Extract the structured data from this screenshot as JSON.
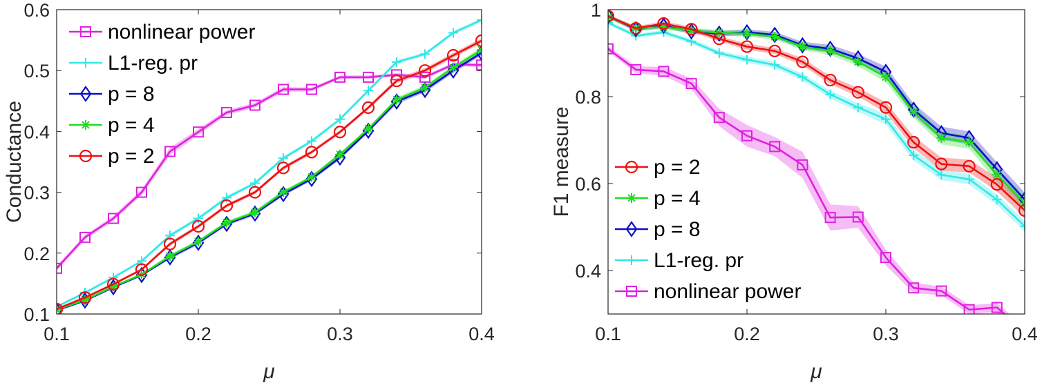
{
  "chart_data": [
    {
      "type": "line",
      "xlabel": "μ",
      "ylabel": "Conductance",
      "xlim": [
        0.1,
        0.4
      ],
      "ylim": [
        0.1,
        0.6
      ],
      "xticks": [
        "0.1",
        "0.2",
        "0.3",
        "0.4"
      ],
      "yticks": [
        "0.1",
        "0.2",
        "0.3",
        "0.4",
        "0.5",
        "0.6"
      ],
      "grid": false,
      "legend_placement": "top-left",
      "x": [
        0.1,
        0.12,
        0.14,
        0.16,
        0.18,
        0.2,
        0.22,
        0.24,
        0.26,
        0.28,
        0.3,
        0.32,
        0.34,
        0.36,
        0.38,
        0.4
      ],
      "legend_order": [
        "nonlinear power",
        "L1-reg. pr",
        "p = 8",
        "p = 4",
        "p = 2"
      ],
      "series": [
        {
          "name": "nonlinear power",
          "color": "#e020e0",
          "marker": "square",
          "values": [
            0.175,
            0.226,
            0.257,
            0.3,
            0.367,
            0.399,
            0.431,
            0.443,
            0.469,
            0.469,
            0.489,
            0.489,
            0.493,
            0.489,
            0.51,
            0.509
          ],
          "std": [
            0.004,
            0.004,
            0.004,
            0.005,
            0.006,
            0.005,
            0.004,
            0.004,
            0.004,
            0.003,
            0.003,
            0.003,
            0.003,
            0.003,
            0.003,
            0.003
          ]
        },
        {
          "name": "L1-reg. pr",
          "color": "#30e8e8",
          "marker": "plus",
          "values": [
            0.112,
            0.135,
            0.16,
            0.187,
            0.229,
            0.257,
            0.291,
            0.315,
            0.356,
            0.384,
            0.42,
            0.467,
            0.514,
            0.527,
            0.562,
            0.583
          ],
          "std": [
            0.002,
            0.002,
            0.002,
            0.002,
            0.003,
            0.003,
            0.003,
            0.003,
            0.003,
            0.003,
            0.003,
            0.003,
            0.003,
            0.003,
            0.003,
            0.003
          ]
        },
        {
          "name": "p = 8",
          "color": "#0a10c8",
          "marker": "diamond",
          "values": [
            0.106,
            0.122,
            0.144,
            0.164,
            0.193,
            0.217,
            0.248,
            0.265,
            0.297,
            0.322,
            0.357,
            0.401,
            0.449,
            0.468,
            0.5,
            0.529
          ],
          "std": [
            0.002,
            0.002,
            0.002,
            0.002,
            0.003,
            0.003,
            0.003,
            0.003,
            0.003,
            0.003,
            0.003,
            0.003,
            0.004,
            0.004,
            0.004,
            0.004
          ]
        },
        {
          "name": "p = 4",
          "color": "#20dd20",
          "marker": "asterisk",
          "values": [
            0.107,
            0.123,
            0.145,
            0.165,
            0.195,
            0.219,
            0.25,
            0.267,
            0.3,
            0.325,
            0.362,
            0.404,
            0.452,
            0.472,
            0.505,
            0.534
          ],
          "std": [
            0.002,
            0.002,
            0.002,
            0.002,
            0.003,
            0.003,
            0.003,
            0.003,
            0.003,
            0.003,
            0.003,
            0.003,
            0.004,
            0.004,
            0.004,
            0.004
          ]
        },
        {
          "name": "p = 2",
          "color": "#ee1010",
          "marker": "circle",
          "values": [
            0.108,
            0.127,
            0.149,
            0.173,
            0.215,
            0.244,
            0.278,
            0.3,
            0.34,
            0.366,
            0.399,
            0.439,
            0.483,
            0.5,
            0.525,
            0.549
          ],
          "std": [
            0.002,
            0.002,
            0.002,
            0.002,
            0.003,
            0.003,
            0.003,
            0.003,
            0.003,
            0.003,
            0.003,
            0.003,
            0.004,
            0.004,
            0.004,
            0.004
          ]
        }
      ]
    },
    {
      "type": "line",
      "xlabel": "μ",
      "ylabel": "F1 measure",
      "xlim": [
        0.1,
        0.4
      ],
      "ylim": [
        0.3,
        1.0
      ],
      "xticks": [
        "0.1",
        "0.2",
        "0.3",
        "0.4"
      ],
      "yticks": [
        "0.4",
        "0.6",
        "0.8",
        "1"
      ],
      "grid": false,
      "legend_placement": "bottom-left",
      "x": [
        0.1,
        0.12,
        0.14,
        0.16,
        0.18,
        0.2,
        0.22,
        0.24,
        0.26,
        0.28,
        0.3,
        0.32,
        0.34,
        0.36,
        0.38,
        0.4
      ],
      "legend_order": [
        "p = 2",
        "p = 4",
        "p = 8",
        "L1-reg. pr",
        "nonlinear power"
      ],
      "series": [
        {
          "name": "nonlinear power",
          "color": "#e020e0",
          "marker": "square",
          "values": [
            0.91,
            0.862,
            0.858,
            0.83,
            0.752,
            0.71,
            0.685,
            0.643,
            0.522,
            0.523,
            0.43,
            0.36,
            0.353,
            0.31,
            0.315,
            0.26
          ],
          "std": [
            0.006,
            0.008,
            0.01,
            0.012,
            0.02,
            0.025,
            0.022,
            0.03,
            0.03,
            0.025,
            0.018,
            0.012,
            0.01,
            0.01,
            0.01,
            0.01
          ]
        },
        {
          "name": "L1-reg. pr",
          "color": "#30e8e8",
          "marker": "plus",
          "values": [
            0.97,
            0.94,
            0.948,
            0.927,
            0.9,
            0.885,
            0.873,
            0.845,
            0.805,
            0.775,
            0.748,
            0.665,
            0.62,
            0.61,
            0.563,
            0.502
          ],
          "std": [
            0.004,
            0.005,
            0.005,
            0.006,
            0.006,
            0.007,
            0.007,
            0.008,
            0.009,
            0.01,
            0.012,
            0.012,
            0.012,
            0.012,
            0.012,
            0.012
          ]
        },
        {
          "name": "p = 8",
          "color": "#0a10c8",
          "marker": "diamond",
          "values": [
            0.985,
            0.955,
            0.963,
            0.95,
            0.945,
            0.948,
            0.942,
            0.918,
            0.91,
            0.888,
            0.857,
            0.77,
            0.716,
            0.705,
            0.633,
            0.563
          ],
          "std": [
            0.004,
            0.005,
            0.005,
            0.006,
            0.006,
            0.007,
            0.007,
            0.008,
            0.009,
            0.01,
            0.012,
            0.014,
            0.015,
            0.015,
            0.016,
            0.016
          ]
        },
        {
          "name": "p = 4",
          "color": "#20dd20",
          "marker": "asterisk",
          "values": [
            0.983,
            0.957,
            0.96,
            0.952,
            0.947,
            0.945,
            0.938,
            0.915,
            0.905,
            0.88,
            0.845,
            0.765,
            0.705,
            0.695,
            0.62,
            0.555
          ],
          "std": [
            0.004,
            0.005,
            0.005,
            0.006,
            0.006,
            0.007,
            0.007,
            0.008,
            0.009,
            0.01,
            0.012,
            0.014,
            0.015,
            0.015,
            0.016,
            0.016
          ]
        },
        {
          "name": "p = 2",
          "color": "#ee1010",
          "marker": "circle",
          "values": [
            0.985,
            0.957,
            0.968,
            0.955,
            0.933,
            0.915,
            0.905,
            0.88,
            0.838,
            0.81,
            0.775,
            0.695,
            0.645,
            0.64,
            0.598,
            0.538
          ],
          "std": [
            0.004,
            0.005,
            0.005,
            0.006,
            0.006,
            0.007,
            0.007,
            0.008,
            0.009,
            0.01,
            0.012,
            0.014,
            0.015,
            0.015,
            0.016,
            0.016
          ]
        }
      ]
    }
  ]
}
